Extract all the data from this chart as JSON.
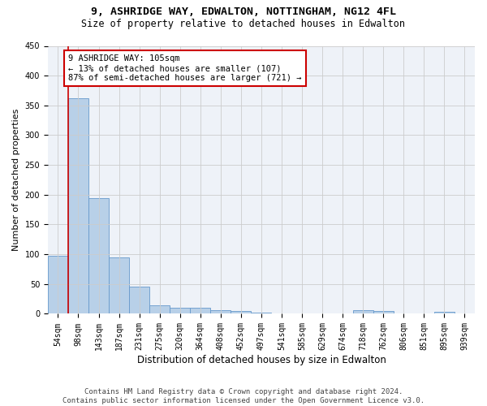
{
  "title1": "9, ASHRIDGE WAY, EDWALTON, NOTTINGHAM, NG12 4FL",
  "title2": "Size of property relative to detached houses in Edwalton",
  "xlabel": "Distribution of detached houses by size in Edwalton",
  "ylabel": "Number of detached properties",
  "bin_labels": [
    "54sqm",
    "98sqm",
    "143sqm",
    "187sqm",
    "231sqm",
    "275sqm",
    "320sqm",
    "364sqm",
    "408sqm",
    "452sqm",
    "497sqm",
    "541sqm",
    "585sqm",
    "629sqm",
    "674sqm",
    "718sqm",
    "762sqm",
    "806sqm",
    "851sqm",
    "895sqm",
    "939sqm"
  ],
  "bar_values": [
    97,
    362,
    194,
    95,
    46,
    14,
    10,
    10,
    6,
    5,
    2,
    0,
    0,
    0,
    0,
    6,
    5,
    0,
    0,
    4,
    0
  ],
  "bar_color": "#b8d0e8",
  "bar_edge_color": "#6699cc",
  "annotation_text_line1": "9 ASHRIDGE WAY: 105sqm",
  "annotation_text_line2": "← 13% of detached houses are smaller (107)",
  "annotation_text_line3": "87% of semi-detached houses are larger (721) →",
  "vline_color": "#cc0000",
  "annotation_box_color": "#ffffff",
  "annotation_box_edge_color": "#cc0000",
  "ylim": [
    0,
    450
  ],
  "yticks": [
    0,
    50,
    100,
    150,
    200,
    250,
    300,
    350,
    400,
    450
  ],
  "footnote": "Contains HM Land Registry data © Crown copyright and database right 2024.\nContains public sector information licensed under the Open Government Licence v3.0.",
  "bg_color": "#eef2f8",
  "grid_color": "#cccccc",
  "title_fontsize": 9.5,
  "subtitle_fontsize": 8.5,
  "ylabel_fontsize": 8,
  "xlabel_fontsize": 8.5,
  "tick_fontsize": 7,
  "annotation_fontsize": 7.5,
  "footnote_fontsize": 6.5
}
